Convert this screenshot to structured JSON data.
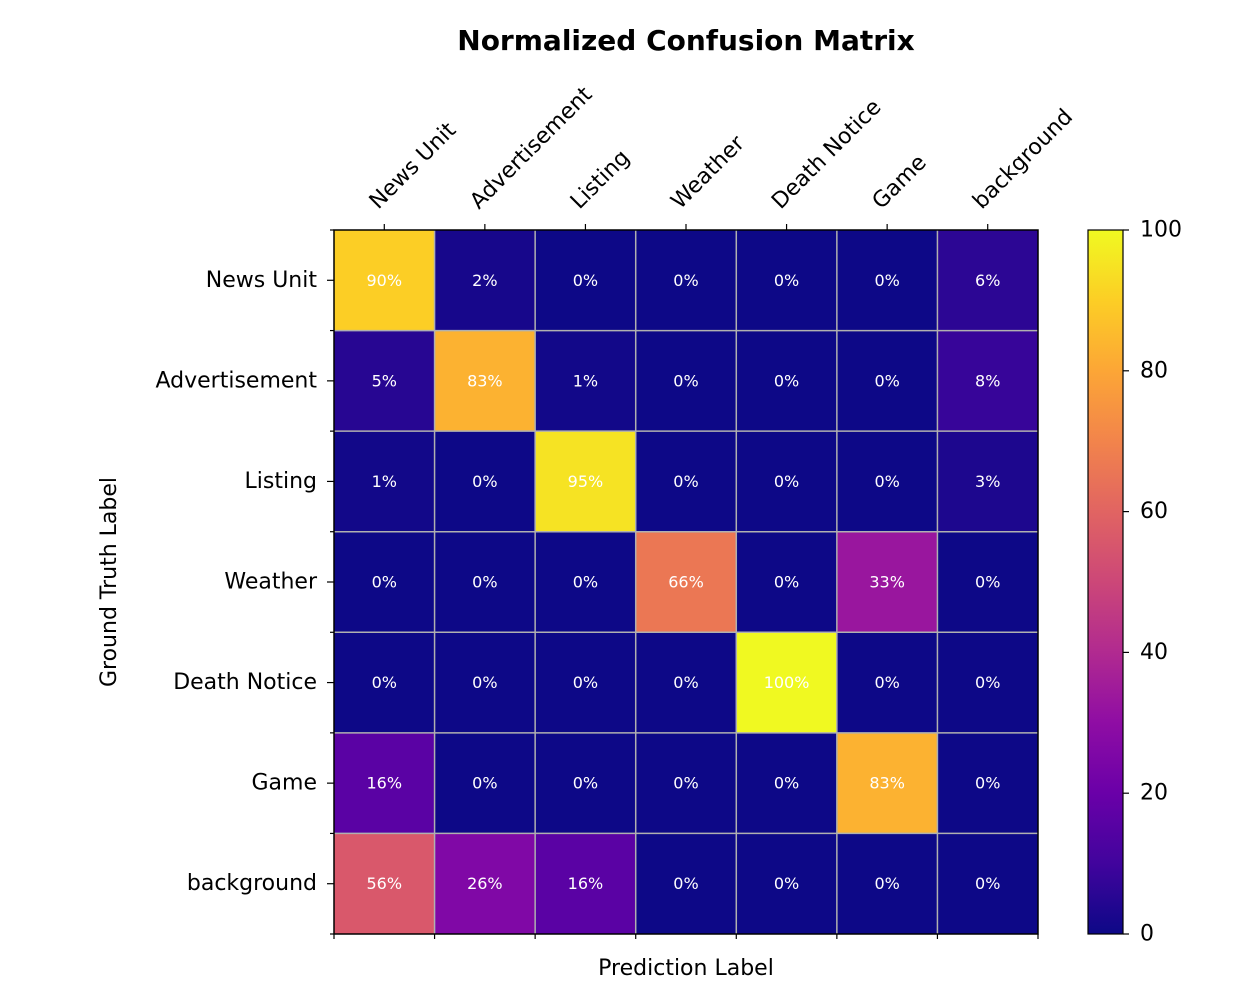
{
  "chart_data": {
    "type": "heatmap",
    "title": "Normalized Confusion Matrix",
    "xlabel": "Prediction Label",
    "ylabel": "Ground Truth Label",
    "x_categories": [
      "News Unit",
      "Advertisement",
      "Listing",
      "Weather",
      "Death Notice",
      "Game",
      "background"
    ],
    "y_categories": [
      "News Unit",
      "Advertisement",
      "Listing",
      "Weather",
      "Death Notice",
      "Game",
      "background"
    ],
    "values": [
      [
        90,
        2,
        0,
        0,
        0,
        0,
        6
      ],
      [
        5,
        83,
        1,
        0,
        0,
        0,
        8
      ],
      [
        1,
        0,
        95,
        0,
        0,
        0,
        3
      ],
      [
        0,
        0,
        0,
        66,
        0,
        33,
        0
      ],
      [
        0,
        0,
        0,
        0,
        100,
        0,
        0
      ],
      [
        16,
        0,
        0,
        0,
        0,
        83,
        0
      ],
      [
        56,
        26,
        16,
        0,
        0,
        0,
        0
      ]
    ],
    "value_suffix": "%",
    "colorbar": {
      "colormap": "plasma",
      "range": [
        0,
        100
      ],
      "ticks": [
        0,
        20,
        40,
        60,
        80,
        100
      ]
    },
    "grid": true
  }
}
